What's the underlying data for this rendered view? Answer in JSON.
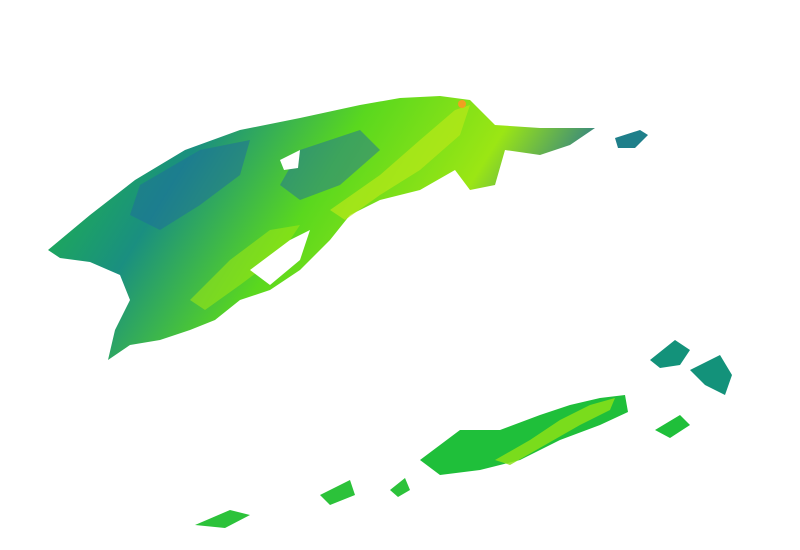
{
  "colors": {
    "background": "#ffffff",
    "low": "#1f6f9a",
    "mid_low": "#13927a",
    "mid": "#1fbf3a",
    "high": "#7ee014",
    "peak": "#d6e81a",
    "max": "#f0a020"
  }
}
